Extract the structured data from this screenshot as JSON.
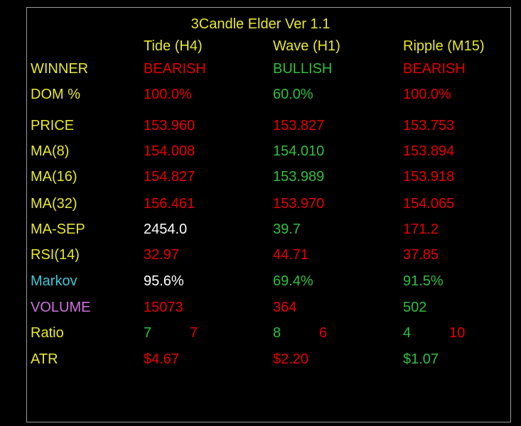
{
  "title": "3Candle Elder Ver 1.1",
  "columns": [
    "Tide (H4)",
    "Wave (H1)",
    "Ripple (M15)"
  ],
  "rows": [
    {
      "label": "WINNER",
      "label_color": "#e8e82a",
      "cells": [
        {
          "text": "BEARISH",
          "color": "#e60000"
        },
        {
          "text": "BULLISH",
          "color": "#2fbf3f"
        },
        {
          "text": "BEARISH",
          "color": "#e60000"
        }
      ]
    },
    {
      "label": "DOM %",
      "label_color": "#e8e82a",
      "cells": [
        {
          "text": "100.0%",
          "color": "#e60000"
        },
        {
          "text": "60.0%",
          "color": "#2fbf3f"
        },
        {
          "text": "100.0%",
          "color": "#e60000"
        }
      ]
    },
    {
      "label": "PRICE",
      "label_color": "#e8e82a",
      "cells": [
        {
          "text": "153.960",
          "color": "#e60000"
        },
        {
          "text": "153.827",
          "color": "#e60000"
        },
        {
          "text": "153.753",
          "color": "#e60000"
        }
      ]
    },
    {
      "label": "MA(8)",
      "label_color": "#e8e82a",
      "cells": [
        {
          "text": "154.008",
          "color": "#e60000"
        },
        {
          "text": "154.010",
          "color": "#2fbf3f"
        },
        {
          "text": "153.894",
          "color": "#e60000"
        }
      ]
    },
    {
      "label": "MA(16)",
      "label_color": "#e8e82a",
      "cells": [
        {
          "text": "154.827",
          "color": "#e60000"
        },
        {
          "text": "153.989",
          "color": "#2fbf3f"
        },
        {
          "text": "153.918",
          "color": "#e60000"
        }
      ]
    },
    {
      "label": "MA(32)",
      "label_color": "#e8e82a",
      "cells": [
        {
          "text": "156.461",
          "color": "#e60000"
        },
        {
          "text": "153.970",
          "color": "#e60000"
        },
        {
          "text": "154.065",
          "color": "#e60000"
        }
      ]
    },
    {
      "label": "MA-SEP",
      "label_color": "#e8e82a",
      "cells": [
        {
          "text": "2454.0",
          "color": "#ffffff"
        },
        {
          "text": "39.7",
          "color": "#2fbf3f"
        },
        {
          "text": "171.2",
          "color": "#e60000"
        }
      ]
    },
    {
      "label": "RSI(14)",
      "label_color": "#e8e82a",
      "cells": [
        {
          "text": "32.97",
          "color": "#e60000"
        },
        {
          "text": "44.71",
          "color": "#e60000"
        },
        {
          "text": "37.85",
          "color": "#e60000"
        }
      ]
    },
    {
      "label": "Markov",
      "label_color": "#3cc8d8",
      "cells": [
        {
          "text": "95.6%",
          "color": "#ffffff"
        },
        {
          "text": "69.4%",
          "color": "#2fbf3f"
        },
        {
          "text": "91.5%",
          "color": "#2fbf3f"
        }
      ]
    },
    {
      "label": "VOLUME",
      "label_color": "#d070e0",
      "cells": [
        {
          "text": "15073",
          "color": "#e60000"
        },
        {
          "text": "364",
          "color": "#e60000"
        },
        {
          "text": "502",
          "color": "#2fbf3f"
        }
      ]
    },
    {
      "label": "Ratio",
      "label_color": "#e8e82a",
      "cells": [
        {
          "parts": [
            {
              "text": "7",
              "color": "#2fbf3f"
            },
            {
              "text": "7",
              "color": "#e60000"
            }
          ]
        },
        {
          "parts": [
            {
              "text": "8",
              "color": "#2fbf3f"
            },
            {
              "text": "6",
              "color": "#e60000"
            }
          ]
        },
        {
          "parts": [
            {
              "text": "4",
              "color": "#2fbf3f"
            },
            {
              "text": "10",
              "color": "#e60000"
            }
          ]
        }
      ]
    },
    {
      "label": "ATR",
      "label_color": "#e8e82a",
      "cells": [
        {
          "text": "$4.67",
          "color": "#e60000"
        },
        {
          "text": "$2.20",
          "color": "#e60000"
        },
        {
          "text": "$1.07",
          "color": "#2fbf3f"
        }
      ]
    }
  ]
}
